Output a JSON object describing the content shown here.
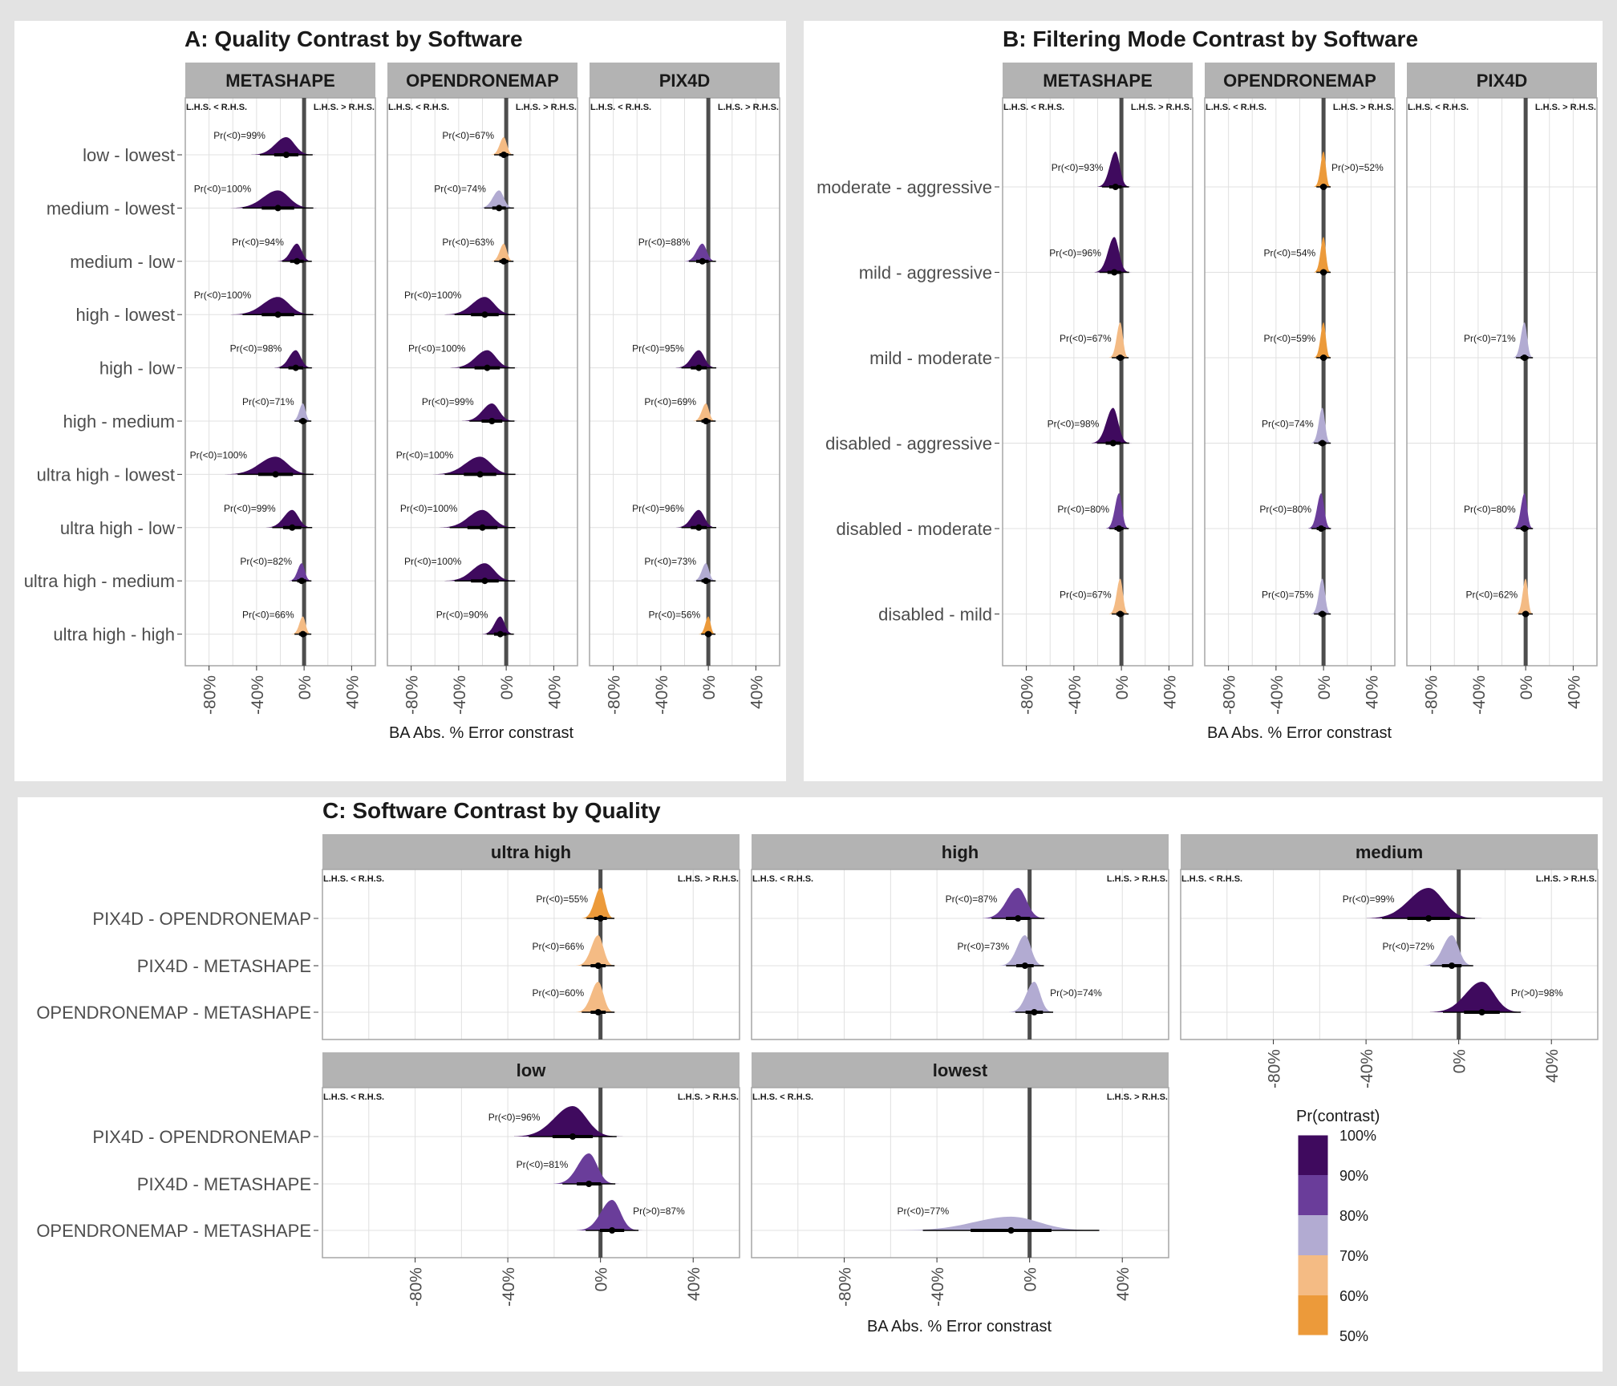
{
  "chart_data": [
    {
      "type": "density",
      "title": "A: Quality Contrast by Software",
      "xlabel": "BA Abs. % Error constrast",
      "xlim": [
        -100,
        60
      ],
      "x_ticks": [
        "-80%",
        "-40%",
        "0%",
        "40%"
      ],
      "x_tick_values": [
        -80,
        -40,
        0,
        40
      ],
      "direction_labels": {
        "left": "L.H.S. < R.H.S.",
        "right": "L.H.S. > R.H.S."
      },
      "facets": [
        "METASHAPE",
        "OPENDRONEMAP",
        "PIX4D"
      ],
      "rows": [
        "low - lowest",
        "medium - lowest",
        "medium - low",
        "high - lowest",
        "high - low",
        "high - medium",
        "ultra high - lowest",
        "ultra high - low",
        "ultra high - medium",
        "ultra high - high"
      ],
      "cells": [
        [
          {
            "center": -15,
            "pr": 99,
            "label": "Pr(<0)=99%"
          },
          {
            "center": -22,
            "pr": 100,
            "label": "Pr(<0)=100%"
          },
          {
            "center": -6,
            "pr": 94,
            "label": "Pr(<0)=94%"
          },
          {
            "center": -22,
            "pr": 100,
            "label": "Pr(<0)=100%"
          },
          {
            "center": -7,
            "pr": 98,
            "label": "Pr(<0)=98%"
          },
          {
            "center": -1,
            "pr": 71,
            "label": "Pr(<0)=71%"
          },
          {
            "center": -24,
            "pr": 100,
            "label": "Pr(<0)=100%"
          },
          {
            "center": -10,
            "pr": 99,
            "label": "Pr(<0)=99%"
          },
          {
            "center": -2,
            "pr": 82,
            "label": "Pr(<0)=82%"
          },
          {
            "center": -1,
            "pr": 66,
            "label": "Pr(<0)=66%"
          }
        ],
        [
          {
            "center": -2,
            "pr": 67,
            "label": "Pr(<0)=67%"
          },
          {
            "center": -6,
            "pr": 74,
            "label": "Pr(<0)=74%"
          },
          {
            "center": -2,
            "pr": 63,
            "label": "Pr(<0)=63%"
          },
          {
            "center": -18,
            "pr": 100,
            "label": "Pr(<0)=100%"
          },
          {
            "center": -16,
            "pr": 100,
            "label": "Pr(<0)=100%"
          },
          {
            "center": -12,
            "pr": 99,
            "label": "Pr(<0)=99%"
          },
          {
            "center": -22,
            "pr": 100,
            "label": "Pr(<0)=100%"
          },
          {
            "center": -20,
            "pr": 100,
            "label": "Pr(<0)=100%"
          },
          {
            "center": -18,
            "pr": 100,
            "label": "Pr(<0)=100%"
          },
          {
            "center": -5,
            "pr": 90,
            "label": "Pr(<0)=90%"
          }
        ],
        [
          null,
          null,
          {
            "center": -5,
            "pr": 88,
            "label": "Pr(<0)=88%"
          },
          null,
          {
            "center": -8,
            "pr": 95,
            "label": "Pr(<0)=95%"
          },
          {
            "center": -2,
            "pr": 69,
            "label": "Pr(<0)=69%"
          },
          null,
          {
            "center": -8,
            "pr": 96,
            "label": "Pr(<0)=96%"
          },
          {
            "center": -2,
            "pr": 73,
            "label": "Pr(<0)=73%"
          },
          {
            "center": 0,
            "pr": 56,
            "label": "Pr(<0)=56%"
          }
        ]
      ]
    },
    {
      "type": "density",
      "title": "B: Filtering Mode Contrast by Software",
      "xlabel": "BA Abs. % Error constrast",
      "xlim": [
        -100,
        60
      ],
      "x_ticks": [
        "-80%",
        "-40%",
        "0%",
        "40%"
      ],
      "x_tick_values": [
        -80,
        -40,
        0,
        40
      ],
      "direction_labels": {
        "left": "L.H.S. < R.H.S.",
        "right": "L.H.S. > R.H.S."
      },
      "facets": [
        "METASHAPE",
        "OPENDRONEMAP",
        "PIX4D"
      ],
      "rows": [
        "moderate - aggressive",
        "mild - aggressive",
        "mild - moderate",
        "disabled - aggressive",
        "disabled - moderate",
        "disabled - mild"
      ],
      "cells": [
        [
          {
            "center": -5,
            "pr": 93,
            "label": "Pr(<0)=93%"
          },
          {
            "center": -6,
            "pr": 96,
            "label": "Pr(<0)=96%"
          },
          {
            "center": -1,
            "pr": 67,
            "label": "Pr(<0)=67%"
          },
          {
            "center": -7,
            "pr": 98,
            "label": "Pr(<0)=98%"
          },
          {
            "center": -2,
            "pr": 80,
            "label": "Pr(<0)=80%"
          },
          {
            "center": -1,
            "pr": 67,
            "label": "Pr(<0)=67%"
          }
        ],
        [
          {
            "center": 0,
            "pr": 52,
            "label": "Pr(>0)=52%"
          },
          {
            "center": 0,
            "pr": 54,
            "label": "Pr(<0)=54%"
          },
          {
            "center": 0,
            "pr": 59,
            "label": "Pr(<0)=59%"
          },
          {
            "center": -1,
            "pr": 74,
            "label": "Pr(<0)=74%"
          },
          {
            "center": -2,
            "pr": 80,
            "label": "Pr(<0)=80%"
          },
          {
            "center": -1,
            "pr": 75,
            "label": "Pr(<0)=75%"
          }
        ],
        [
          null,
          null,
          {
            "center": -1,
            "pr": 71,
            "label": "Pr(<0)=71%"
          },
          null,
          {
            "center": -1,
            "pr": 80,
            "label": "Pr(<0)=80%"
          },
          {
            "center": 0,
            "pr": 62,
            "label": "Pr(<0)=62%"
          }
        ]
      ]
    },
    {
      "type": "density",
      "title": "C: Software Contrast by Quality",
      "xlabel": "BA Abs. % Error constrast",
      "xlim": [
        -120,
        60
      ],
      "x_ticks": [
        "-80%",
        "-40%",
        "0%",
        "40%"
      ],
      "x_tick_values": [
        -80,
        -40,
        0,
        40
      ],
      "direction_labels": {
        "left": "L.H.S. < R.H.S.",
        "right": "L.H.S. > R.H.S."
      },
      "facets": [
        "ultra high",
        "high",
        "medium",
        "low",
        "lowest"
      ],
      "rows": [
        "PIX4D - OPENDRONEMAP",
        "PIX4D - METASHAPE",
        "OPENDRONEMAP - METASHAPE"
      ],
      "cells": [
        [
          {
            "center": 0,
            "pr": 55,
            "label": "Pr(<0)=55%"
          },
          {
            "center": -1,
            "pr": 66,
            "label": "Pr(<0)=66%"
          },
          {
            "center": -1,
            "pr": 60,
            "label": "Pr(<0)=60%"
          }
        ],
        [
          {
            "center": -5,
            "pr": 87,
            "label": "Pr(<0)=87%"
          },
          {
            "center": -2,
            "pr": 73,
            "label": "Pr(<0)=73%"
          },
          {
            "center": 2,
            "pr": 74,
            "label": "Pr(>0)=74%"
          }
        ],
        [
          {
            "center": -13,
            "pr": 99,
            "label": "Pr(<0)=99%"
          },
          {
            "center": -3,
            "pr": 72,
            "label": "Pr(<0)=72%"
          },
          {
            "center": 10,
            "pr": 98,
            "label": "Pr(>0)=98%"
          }
        ],
        [
          {
            "center": -12,
            "pr": 96,
            "label": "Pr(<0)=96%"
          },
          {
            "center": -5,
            "pr": 81,
            "label": "Pr(<0)=81%"
          },
          {
            "center": 5,
            "pr": 87,
            "label": "Pr(>0)=87%"
          }
        ],
        [
          null,
          null,
          {
            "center": -8,
            "pr": 77,
            "label": "Pr(<0)=77%"
          }
        ]
      ]
    }
  ],
  "legend": {
    "title": "Pr(contrast)",
    "labels": [
      "100%",
      "90%",
      "80%",
      "70%",
      "60%",
      "50%"
    ],
    "colors": [
      "#3f0a5e",
      "#6a3d9a",
      "#b2abd2",
      "#f4bb84",
      "#ec9a3a"
    ]
  },
  "colors": {
    "strip_bg": "#b3b3b3",
    "zero_line": "#4d4d4d",
    "grid": "#e0e0e0",
    "panel_border": "#a6a6a6",
    "frame_bg": "#e3e3e3"
  }
}
